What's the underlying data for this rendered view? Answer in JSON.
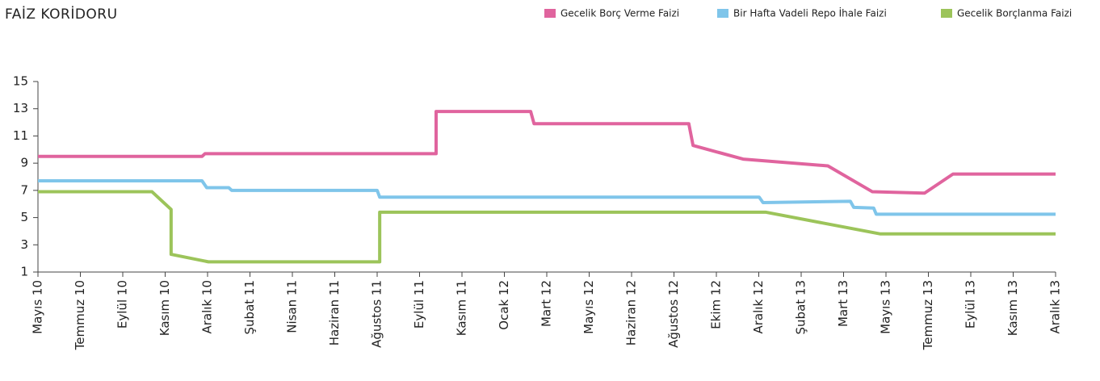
{
  "chart_data": {
    "type": "line",
    "title": "FAİZ KORİDORU",
    "xlim": [
      0,
      24
    ],
    "xticks": [
      {
        "value": 0,
        "label": "Mayıs 10"
      },
      {
        "value": 1,
        "label": "Temmuz 10"
      },
      {
        "value": 2,
        "label": "Eylül 10"
      },
      {
        "value": 3,
        "label": "Kasım 10"
      },
      {
        "value": 4,
        "label": "Aralık 10"
      },
      {
        "value": 5,
        "label": "Şubat 11"
      },
      {
        "value": 6,
        "label": "Nisan 11"
      },
      {
        "value": 7,
        "label": "Haziran 11"
      },
      {
        "value": 8,
        "label": "Ağustos 11"
      },
      {
        "value": 9,
        "label": "Eylül 11"
      },
      {
        "value": 10,
        "label": "Kasım 11"
      },
      {
        "value": 11,
        "label": "Ocak 12"
      },
      {
        "value": 12,
        "label": "Mart 12"
      },
      {
        "value": 13,
        "label": "Mayıs 12"
      },
      {
        "value": 14,
        "label": "Haziran 12"
      },
      {
        "value": 15,
        "label": "Ağustos 12"
      },
      {
        "value": 16,
        "label": "Ekim 12"
      },
      {
        "value": 17,
        "label": "Aralık 12"
      },
      {
        "value": 18,
        "label": "Şubat 13"
      },
      {
        "value": 19,
        "label": "Mart 13"
      },
      {
        "value": 20,
        "label": "Mayıs 13"
      },
      {
        "value": 21,
        "label": "Temmuz 13"
      },
      {
        "value": 22,
        "label": "Eylül 13"
      },
      {
        "value": 23,
        "label": "Kasım 13"
      },
      {
        "value": 24,
        "label": "Aralık 13"
      }
    ],
    "ylim": [
      1,
      15
    ],
    "yticks": [
      1,
      3,
      5,
      7,
      9,
      11,
      13,
      15
    ],
    "legend": "top-right",
    "series": [
      {
        "name": "Gecelik Borç Verme Faizi",
        "color": "#e0649e",
        "x": [
          0,
          3.87,
          3.94,
          9.39,
          9.39,
          11.62,
          11.7,
          15.35,
          15.45,
          16.63,
          18.63,
          19.68,
          20.91,
          21.58,
          24
        ],
        "values": [
          9.5,
          9.5,
          9.7,
          9.7,
          12.8,
          12.8,
          11.9,
          11.9,
          10.3,
          9.3,
          8.8,
          6.9,
          6.8,
          8.2,
          8.2
        ]
      },
      {
        "name": "Bir Hafta Vadeli Repo İhale Faizi",
        "color": "#7fc5ea",
        "x": [
          0,
          3.87,
          3.98,
          4.5,
          4.57,
          8.0,
          8.06,
          17.01,
          17.1,
          19.16,
          19.24,
          19.71,
          19.77,
          24
        ],
        "values": [
          7.7,
          7.7,
          7.2,
          7.2,
          7.0,
          7.0,
          6.5,
          6.5,
          6.1,
          6.2,
          5.75,
          5.7,
          5.25,
          5.25
        ]
      },
      {
        "name": "Gecelik Borçlanma Faizi",
        "color": "#9cc45a",
        "x": [
          0,
          2.69,
          3.14,
          3.14,
          4.02,
          8.06,
          8.06,
          17.16,
          19.87,
          24
        ],
        "values": [
          6.9,
          6.9,
          5.6,
          2.3,
          1.75,
          1.75,
          5.4,
          5.4,
          3.8,
          3.8
        ]
      }
    ]
  }
}
